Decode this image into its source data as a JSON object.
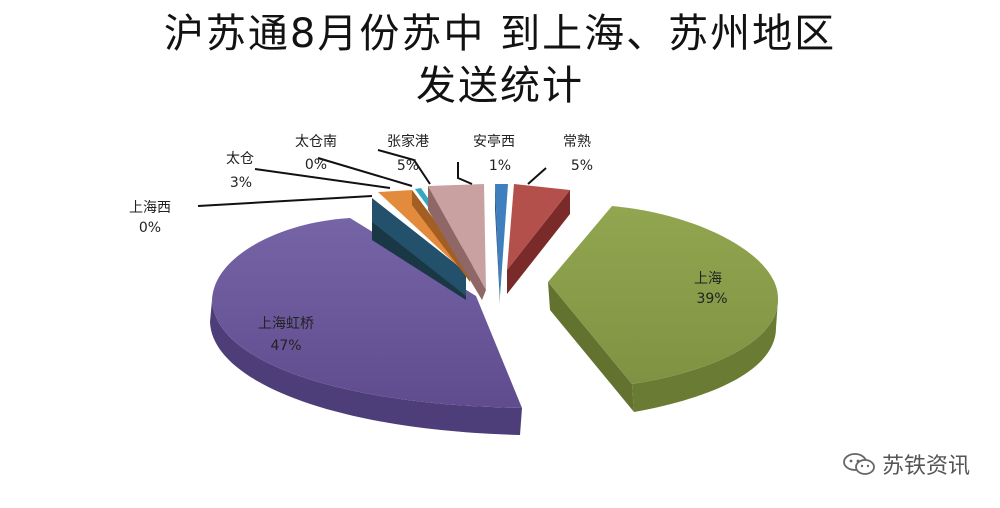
{
  "title": {
    "line1": "沪苏通8月份苏中 到上海、苏州地区",
    "line2": "发送统计"
  },
  "watermark": {
    "text": "苏铁资讯",
    "icon": "wechat-icon"
  },
  "chart_data": {
    "type": "pie",
    "style": "3d-exploded",
    "title": "沪苏通8月份苏中 到上海、苏州地区发送统计",
    "slices": [
      {
        "name": "上海",
        "percent_label": "39%",
        "value": 39,
        "color": "#8ea24d"
      },
      {
        "name": "上海虹桥",
        "percent_label": "47%",
        "value": 47,
        "color": "#7b63a8"
      },
      {
        "name": "上海西",
        "percent_label": "0%",
        "value": 0,
        "color": "#35a8c0"
      },
      {
        "name": "太仓",
        "percent_label": "3%",
        "value": 3,
        "color": "#23506a"
      },
      {
        "name": "太仓南",
        "percent_label": "0%",
        "value": 0,
        "color": "#e38b3c"
      },
      {
        "name": "张家港",
        "percent_label": "5%",
        "value": 5,
        "color": "#9fb3d3"
      },
      {
        "name": "安亭西",
        "percent_label": "1%",
        "value": 1,
        "color": "#d99694"
      },
      {
        "name": "常熟",
        "percent_label": "5%",
        "value": 5,
        "color": "#3f7fbe"
      }
    ],
    "legend": "none",
    "data_labels": "outside-with-leaders"
  }
}
